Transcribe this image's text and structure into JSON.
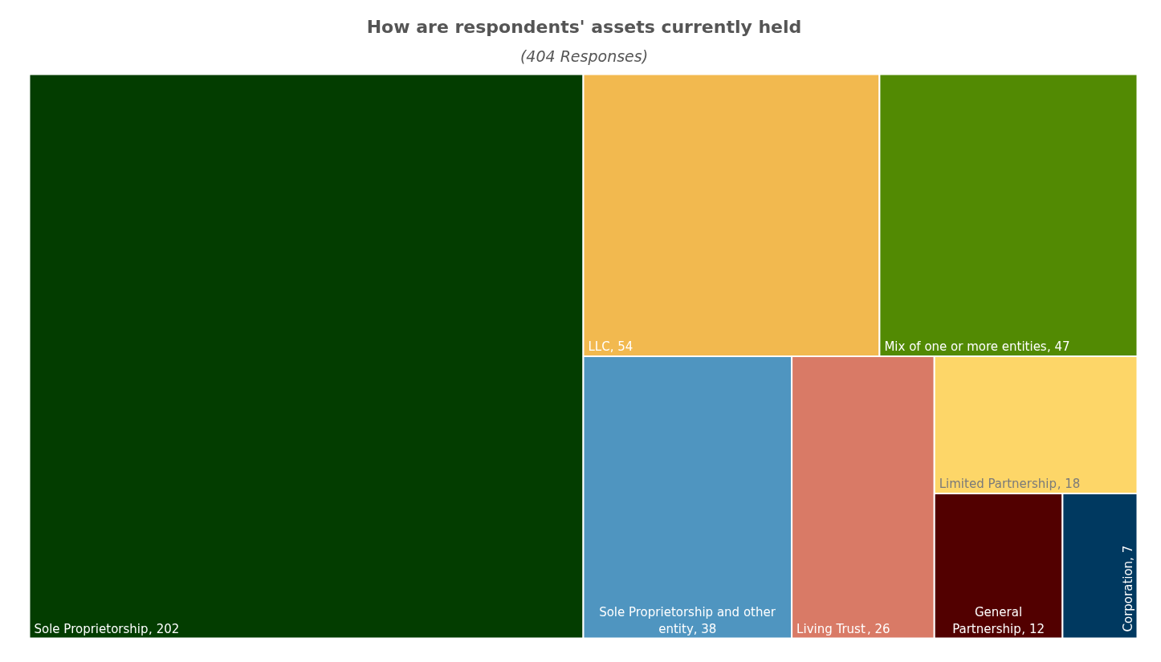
{
  "chart_data": {
    "type": "other",
    "title": "How are respondents' assets currently held",
    "subtitle": "(404 Responses)",
    "categories": [
      "Sole Proprietorship",
      "LLC",
      "Mix of one or more entities",
      "Sole Proprietorship and other entity",
      "Living Trust",
      "Limited Partnership",
      "General Partnership",
      "Corporation"
    ],
    "values": [
      202,
      54,
      47,
      38,
      26,
      18,
      12,
      7
    ],
    "colors": [
      "#033d00",
      "#f2b94f",
      "#528a03",
      "#4f95c0",
      "#d97a66",
      "#fdd668",
      "#520000",
      "#003960"
    ],
    "value_labels": [
      ", 202",
      ", 54",
      ", 47",
      ", 38",
      ", 26",
      ", 18",
      ", 12",
      ", 7"
    ]
  }
}
